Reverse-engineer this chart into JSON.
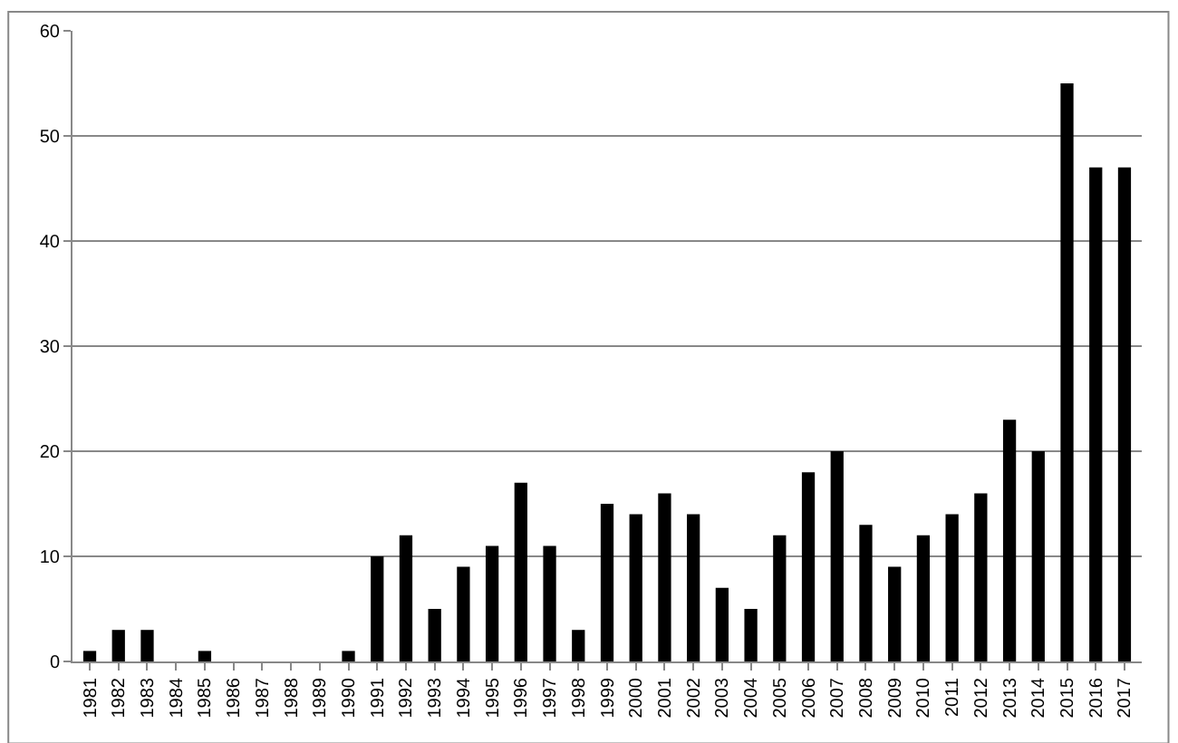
{
  "chart_data": {
    "type": "bar",
    "categories": [
      "1981",
      "1982",
      "1983",
      "1984",
      "1985",
      "1986",
      "1987",
      "1988",
      "1989",
      "1990",
      "1991",
      "1992",
      "1993",
      "1994",
      "1995",
      "1996",
      "1997",
      "1998",
      "1999",
      "2000",
      "2001",
      "2002",
      "2003",
      "2004",
      "2005",
      "2006",
      "2007",
      "2008",
      "2009",
      "2010",
      "2011",
      "2012",
      "2013",
      "2014",
      "2015",
      "2016",
      "2017"
    ],
    "values": [
      1,
      3,
      3,
      0,
      1,
      0,
      0,
      0,
      0,
      1,
      10,
      12,
      5,
      9,
      11,
      17,
      11,
      3,
      15,
      14,
      16,
      14,
      7,
      5,
      12,
      18,
      20,
      13,
      9,
      12,
      14,
      16,
      23,
      20,
      55,
      47,
      47
    ],
    "color": "#000000",
    "ylim": [
      0,
      60
    ],
    "yticks": [
      0,
      10,
      20,
      30,
      40,
      50,
      60
    ],
    "grid": "y"
  }
}
